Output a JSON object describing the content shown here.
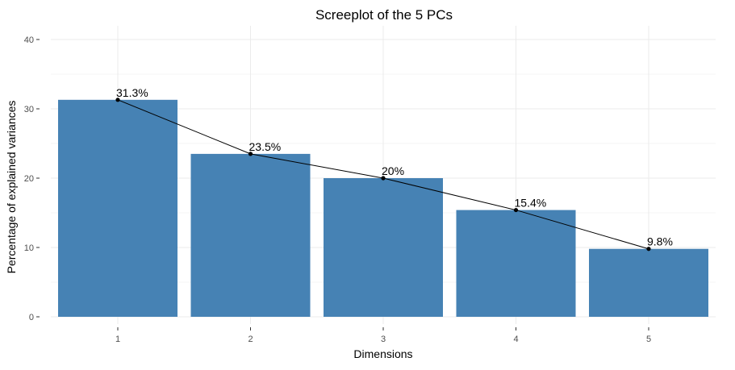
{
  "chart_data": {
    "type": "bar",
    "title": "Screeplot of the 5 PCs",
    "xlabel": "Dimensions",
    "ylabel": "Percentage of explained variances",
    "categories": [
      "1",
      "2",
      "3",
      "4",
      "5"
    ],
    "values": [
      31.3,
      23.5,
      20.0,
      15.4,
      9.8
    ],
    "data_labels": [
      "31.3%",
      "23.5%",
      "20%",
      "15.4%",
      "9.8%"
    ],
    "ylim": [
      0,
      42
    ],
    "yticks": [
      0,
      10,
      20,
      30,
      40
    ],
    "ytick_labels": [
      "0",
      "10",
      "20",
      "30",
      "40"
    ],
    "grid": true,
    "legend": "none",
    "overlay": "line with points through bar tops",
    "bar_color": "#4682b4",
    "line_color": "#000000",
    "grid_color": "#ebebeb"
  }
}
